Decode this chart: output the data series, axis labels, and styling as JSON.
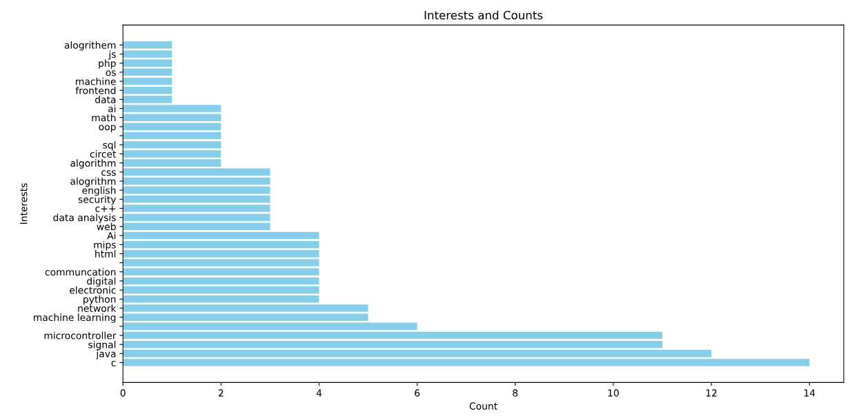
{
  "chart_data": {
    "type": "bar",
    "orientation": "horizontal",
    "title": "Interests and Counts",
    "xlabel": "Count",
    "ylabel": "Interests",
    "categories": [
      "alogrithem",
      "js",
      "php",
      "os",
      "machine",
      "frontend",
      "data",
      "ai",
      "math",
      "oop",
      null,
      "sql",
      "circet",
      "algorithm",
      "css",
      "alogrithm",
      "english",
      "security",
      "c++",
      "data analysis",
      "web",
      "Ai",
      "mips",
      "html",
      null,
      "communcation",
      "digital",
      "electronic",
      "python",
      "network",
      "machine learning",
      null,
      "microcontroller",
      "signal",
      "java",
      "c"
    ],
    "values": [
      1,
      1,
      1,
      1,
      1,
      1,
      1,
      2,
      2,
      2,
      2,
      2,
      2,
      2,
      3,
      3,
      3,
      3,
      3,
      3,
      3,
      4,
      4,
      4,
      4,
      4,
      4,
      4,
      4,
      5,
      5,
      6,
      11,
      11,
      12,
      14
    ],
    "color": "#87ceeb",
    "xlim": [
      0,
      14.7
    ],
    "xticks": [
      0,
      2,
      4,
      6,
      8,
      10,
      12,
      14
    ],
    "grid": false
  }
}
